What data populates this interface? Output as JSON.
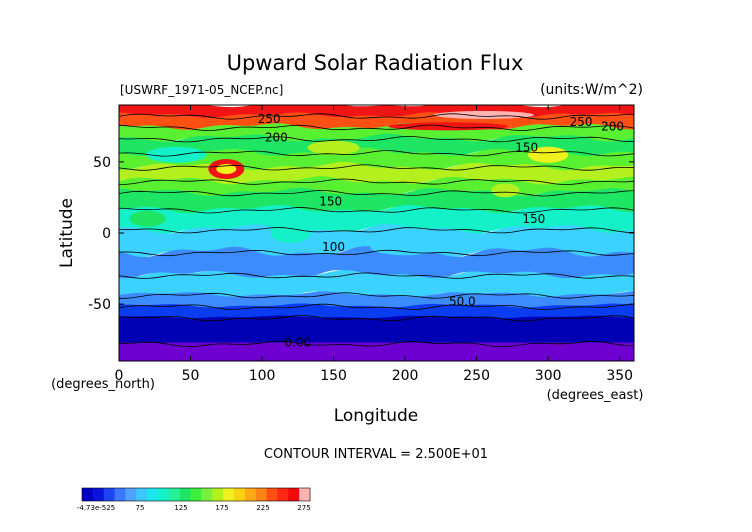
{
  "chart_data": {
    "type": "heatmap",
    "title": "Upward Solar Radiation Flux",
    "file_label": "[USWRF_1971-05_NCEP.nc]",
    "units_label": "(units:W/m^2)",
    "xlabel": "Longitude",
    "ylabel": "Latitude",
    "x_unit_label": "(degrees_east)",
    "y_unit_label": "(degrees_north)",
    "xlim": [
      0,
      360
    ],
    "ylim": [
      -90,
      90
    ],
    "x_ticks": [
      0,
      50,
      100,
      150,
      200,
      250,
      300,
      350
    ],
    "y_ticks": [
      -50,
      0,
      50
    ],
    "contour_interval_text": "CONTOUR INTERVAL = 2.500E+01",
    "contour_labels": [
      {
        "text": "250",
        "lon": 105,
        "lat": 80
      },
      {
        "text": "200",
        "lon": 110,
        "lat": 67
      },
      {
        "text": "250",
        "lon": 323,
        "lat": 78
      },
      {
        "text": "200",
        "lon": 345,
        "lat": 75
      },
      {
        "text": "150",
        "lon": 285,
        "lat": 60
      },
      {
        "text": "150",
        "lon": 148,
        "lat": 22
      },
      {
        "text": "150",
        "lon": 290,
        "lat": 10
      },
      {
        "text": "100",
        "lon": 150,
        "lat": -10
      },
      {
        "text": "50.0",
        "lon": 240,
        "lat": -48
      },
      {
        "text": "0.00",
        "lon": 125,
        "lat": -77
      }
    ],
    "zonal_mean_flux_by_lat": [
      {
        "lat": 85,
        "value": 255
      },
      {
        "lat": 75,
        "value": 240
      },
      {
        "lat": 65,
        "value": 180
      },
      {
        "lat": 55,
        "value": 150
      },
      {
        "lat": 45,
        "value": 165
      },
      {
        "lat": 35,
        "value": 140
      },
      {
        "lat": 25,
        "value": 145
      },
      {
        "lat": 15,
        "value": 125
      },
      {
        "lat": 5,
        "value": 115
      },
      {
        "lat": -5,
        "value": 95
      },
      {
        "lat": -15,
        "value": 88
      },
      {
        "lat": -25,
        "value": 82
      },
      {
        "lat": -35,
        "value": 70
      },
      {
        "lat": -45,
        "value": 55
      },
      {
        "lat": -55,
        "value": 20
      },
      {
        "lat": -65,
        "value": 10
      },
      {
        "lat": -75,
        "value": 5
      },
      {
        "lat": -85,
        "value": 0
      }
    ],
    "colorbar": {
      "tick_labels": [
        "-4.73e-525",
        "75",
        "125",
        "175",
        "225",
        "275"
      ],
      "colors": [
        "#0000c8",
        "#0a14dc",
        "#1e46f0",
        "#3c78ff",
        "#50a0ff",
        "#3cc8ff",
        "#1ee6f0",
        "#14f0c8",
        "#28f096",
        "#1ee664",
        "#3cf03c",
        "#78f03c",
        "#b4f01e",
        "#f0f01e",
        "#fad214",
        "#ffaa14",
        "#ff8214",
        "#ff5014",
        "#ff2814",
        "#f00a0a",
        "#ffb4b4"
      ]
    }
  },
  "colors": {
    "violet": "#6e00d2",
    "deep_blue": "#0000b4",
    "blue": "#0a3cf0",
    "light_blue": "#3c8cff",
    "cyan": "#3cd2ff",
    "aqua": "#14f0c8",
    "green": "#1ee664",
    "bright_green": "#5af032",
    "yellow_green": "#b4f01e",
    "yellow": "#f0f01e",
    "orange": "#ffa014",
    "red_orange": "#ff5014",
    "red": "#f01414",
    "pink": "#ffb4b4"
  }
}
